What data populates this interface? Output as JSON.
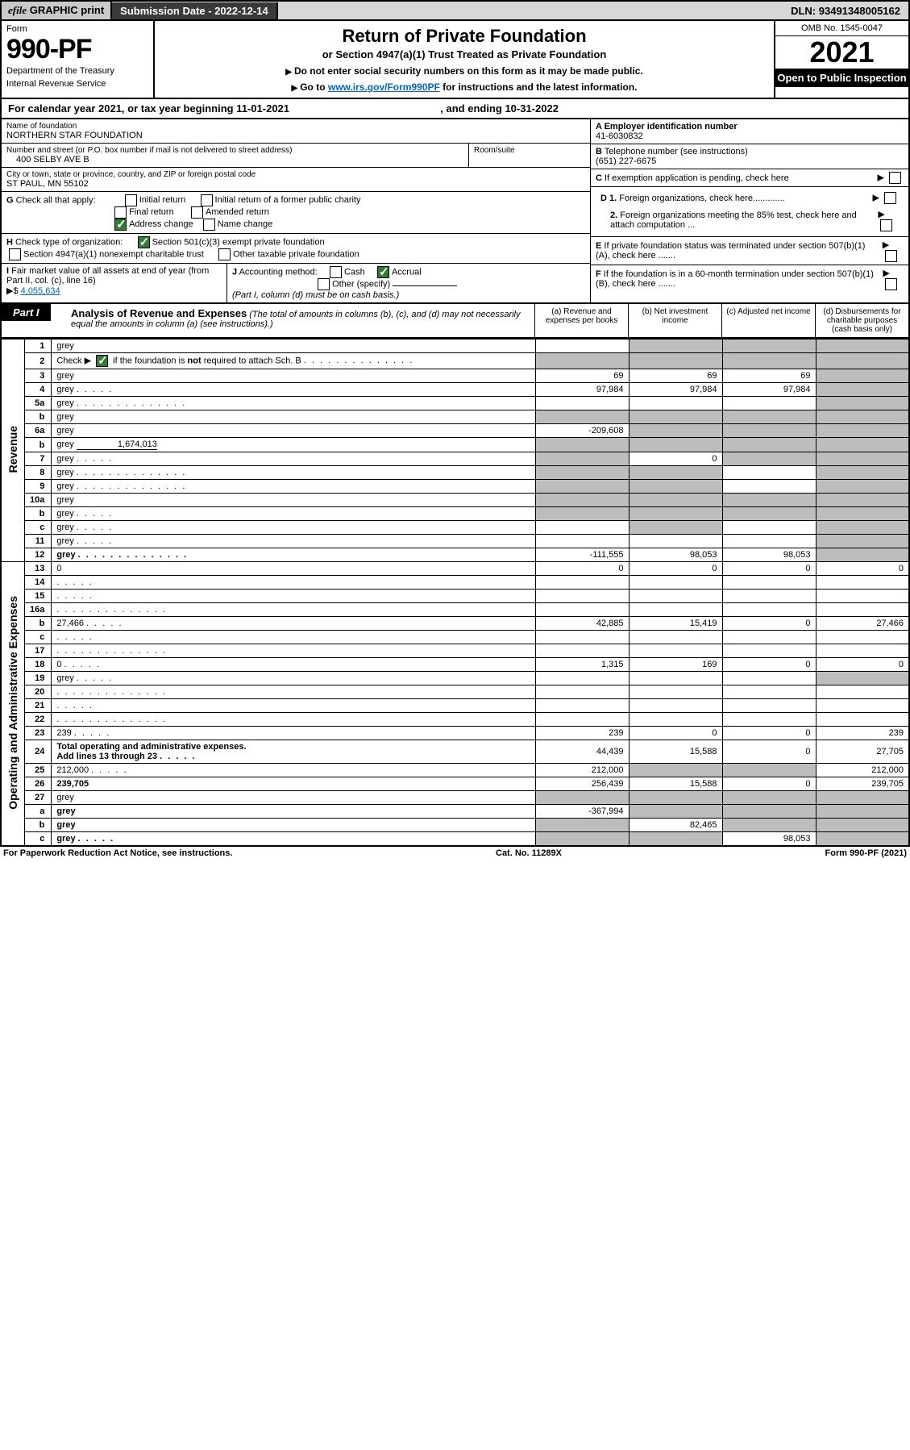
{
  "topbar": {
    "efile_prefix": "efile",
    "efile_rest": " GRAPHIC print",
    "submission_label": "Submission Date - ",
    "submission_date": "2022-12-14",
    "dln_label": "DLN: ",
    "dln": "93491348005162"
  },
  "header": {
    "form_label": "Form",
    "form_no": "990-PF",
    "dept1": "Department of the Treasury",
    "dept2": "Internal Revenue Service",
    "title": "Return of Private Foundation",
    "subtitle": "or Section 4947(a)(1) Trust Treated as Private Foundation",
    "note1": "Do not enter social security numbers on this form as it may be made public.",
    "note2_pre": "Go to ",
    "note2_link": "www.irs.gov/Form990PF",
    "note2_post": " for instructions and the latest information.",
    "omb": "OMB No. 1545-0047",
    "year": "2021",
    "open": "Open to Public Inspection"
  },
  "calendar": {
    "pre": "For calendar year 2021, or tax year beginning ",
    "begin": "11-01-2021",
    "mid": ", and ending ",
    "end": "10-31-2022"
  },
  "entity": {
    "name_label": "Name of foundation",
    "name": "NORTHERN STAR FOUNDATION",
    "addr_label": "Number and street (or P.O. box number if mail is not delivered to street address)",
    "addr": "400 SELBY AVE B",
    "room_label": "Room/suite",
    "city_label": "City or town, state or province, country, and ZIP or foreign postal code",
    "city": "ST PAUL, MN  55102",
    "a_label": "A Employer identification number",
    "a_val": "41-6030832",
    "b_label": "B",
    "b_text": " Telephone number (see instructions)",
    "b_val": "(651) 227-6675",
    "c_text": "If exemption application is pending, check here",
    "d1": "Foreign organizations, check here",
    "d2": "Foreign organizations meeting the 85% test, check here and attach computation ...",
    "e_text": "If private foundation status was terminated under section 507(b)(1)(A), check here .......",
    "f_text": "If the foundation is in a 60-month termination under section 507(b)(1)(B), check here .......",
    "g_label": "G",
    "g_text": " Check all that apply:",
    "g_items": [
      "Initial return",
      "Initial return of a former public charity",
      "Final return",
      "Amended return",
      "Address change",
      "Name change"
    ],
    "h_label": "H",
    "h_text": " Check type of organization:",
    "h_items": [
      "Section 501(c)(3) exempt private foundation",
      "Section 4947(a)(1) nonexempt charitable trust",
      "Other taxable private foundation"
    ],
    "i_label": "I",
    "i_text": " Fair market value of all assets at end of year (from Part II, col. (c), line 16)",
    "i_val": "4,055,634",
    "j_label": "J",
    "j_text": " Accounting method:",
    "j_items": [
      "Cash",
      "Accrual",
      "Other (specify)"
    ],
    "j_note": "(Part I, column (d) must be on cash basis.)"
  },
  "part1": {
    "label": "Part I",
    "title": "Analysis of Revenue and Expenses",
    "note": " (The total of amounts in columns (b), (c), and (d) may not necessarily equal the amounts in column (a) (see instructions).)",
    "cols": {
      "a": "(a)  Revenue and expenses per books",
      "b": "(b)  Net investment income",
      "c": "(c)  Adjusted net income",
      "d": "(d)  Disbursements for charitable purposes (cash basis only)"
    }
  },
  "side": {
    "revenue": "Revenue",
    "expenses": "Operating and Administrative Expenses"
  },
  "rows": [
    {
      "n": "1",
      "d": "grey",
      "a": "",
      "b": "grey",
      "c": "grey"
    },
    {
      "n": "2",
      "d": "grey",
      "dots": true,
      "a": "grey",
      "b": "grey",
      "c": "grey",
      "special": "check2"
    },
    {
      "n": "3",
      "d": "grey",
      "a": "69",
      "b": "69",
      "c": "69"
    },
    {
      "n": "4",
      "d": "grey",
      "dots": "s",
      "a": "97,984",
      "b": "97,984",
      "c": "97,984"
    },
    {
      "n": "5a",
      "d": "grey",
      "dots": true,
      "a": "",
      "b": "",
      "c": ""
    },
    {
      "n": "b",
      "d": "grey",
      "inset": true,
      "a": "grey",
      "b": "grey",
      "c": "grey"
    },
    {
      "n": "6a",
      "d": "grey",
      "a": "-209,608",
      "b": "grey",
      "c": "grey"
    },
    {
      "n": "b",
      "d": "grey",
      "inset": true,
      "inlineval": "1,674,013",
      "a": "grey",
      "b": "grey",
      "c": "grey"
    },
    {
      "n": "7",
      "d": "grey",
      "dots": "s",
      "a": "grey",
      "b": "0",
      "c": "grey"
    },
    {
      "n": "8",
      "d": "grey",
      "dots": true,
      "a": "grey",
      "b": "grey",
      "c": ""
    },
    {
      "n": "9",
      "d": "grey",
      "dots": true,
      "a": "grey",
      "b": "grey",
      "c": ""
    },
    {
      "n": "10a",
      "d": "grey",
      "inset": true,
      "a": "grey",
      "b": "grey",
      "c": "grey"
    },
    {
      "n": "b",
      "d": "grey",
      "dots": "s",
      "inset": true,
      "a": "grey",
      "b": "grey",
      "c": "grey"
    },
    {
      "n": "c",
      "d": "grey",
      "dots": "s",
      "a": "",
      "b": "grey",
      "c": ""
    },
    {
      "n": "11",
      "d": "grey",
      "dots": "s",
      "a": "",
      "b": "",
      "c": ""
    },
    {
      "n": "12",
      "d": "grey",
      "dots": true,
      "bold": true,
      "a": "-111,555",
      "b": "98,053",
      "c": "98,053"
    },
    {
      "n": "13",
      "d": "0",
      "a": "0",
      "b": "0",
      "c": "0"
    },
    {
      "n": "14",
      "d": "",
      "dots": "s",
      "a": "",
      "b": "",
      "c": ""
    },
    {
      "n": "15",
      "d": "",
      "dots": "s",
      "a": "",
      "b": "",
      "c": ""
    },
    {
      "n": "16a",
      "d": "",
      "dots": true,
      "a": "",
      "b": "",
      "c": ""
    },
    {
      "n": "b",
      "d": "27,466",
      "dots": "s",
      "a": "42,885",
      "b": "15,419",
      "c": "0"
    },
    {
      "n": "c",
      "d": "",
      "dots": "s",
      "a": "",
      "b": "",
      "c": ""
    },
    {
      "n": "17",
      "d": "",
      "dots": true,
      "a": "",
      "b": "",
      "c": ""
    },
    {
      "n": "18",
      "d": "0",
      "dots": "s",
      "a": "1,315",
      "b": "169",
      "c": "0"
    },
    {
      "n": "19",
      "d": "grey",
      "dots": "s",
      "a": "",
      "b": "",
      "c": ""
    },
    {
      "n": "20",
      "d": "",
      "dots": true,
      "a": "",
      "b": "",
      "c": ""
    },
    {
      "n": "21",
      "d": "",
      "dots": "s",
      "a": "",
      "b": "",
      "c": ""
    },
    {
      "n": "22",
      "d": "",
      "dots": true,
      "a": "",
      "b": "",
      "c": ""
    },
    {
      "n": "23",
      "d": "239",
      "dots": "s",
      "a": "239",
      "b": "0",
      "c": "0"
    },
    {
      "n": "24",
      "d": "27,705",
      "dots": "s",
      "bold": true,
      "twoline": true,
      "a": "44,439",
      "b": "15,588",
      "c": "0"
    },
    {
      "n": "25",
      "d": "212,000",
      "dots": "s",
      "a": "212,000",
      "b": "grey",
      "c": "grey"
    },
    {
      "n": "26",
      "d": "239,705",
      "bold": true,
      "a": "256,439",
      "b": "15,588",
      "c": "0"
    },
    {
      "n": "27",
      "d": "grey",
      "a": "grey",
      "b": "grey",
      "c": "grey"
    },
    {
      "n": "a",
      "d": "grey",
      "bold": true,
      "a": "-367,994",
      "b": "grey",
      "c": "grey"
    },
    {
      "n": "b",
      "d": "grey",
      "bold": true,
      "a": "grey",
      "b": "82,465",
      "c": "grey"
    },
    {
      "n": "c",
      "d": "grey",
      "dots": "s",
      "bold": true,
      "a": "grey",
      "b": "grey",
      "c": "98,053"
    }
  ],
  "footer": {
    "left": "For Paperwork Reduction Act Notice, see instructions.",
    "mid": "Cat. No. 11289X",
    "right": "Form 990-PF (2021)"
  },
  "colors": {
    "grey_cell": "#bdbdbd",
    "top_grey": "#d7d7d7",
    "dark": "#3a3a3a",
    "link": "#0066c4",
    "green": "#2e7d32"
  }
}
